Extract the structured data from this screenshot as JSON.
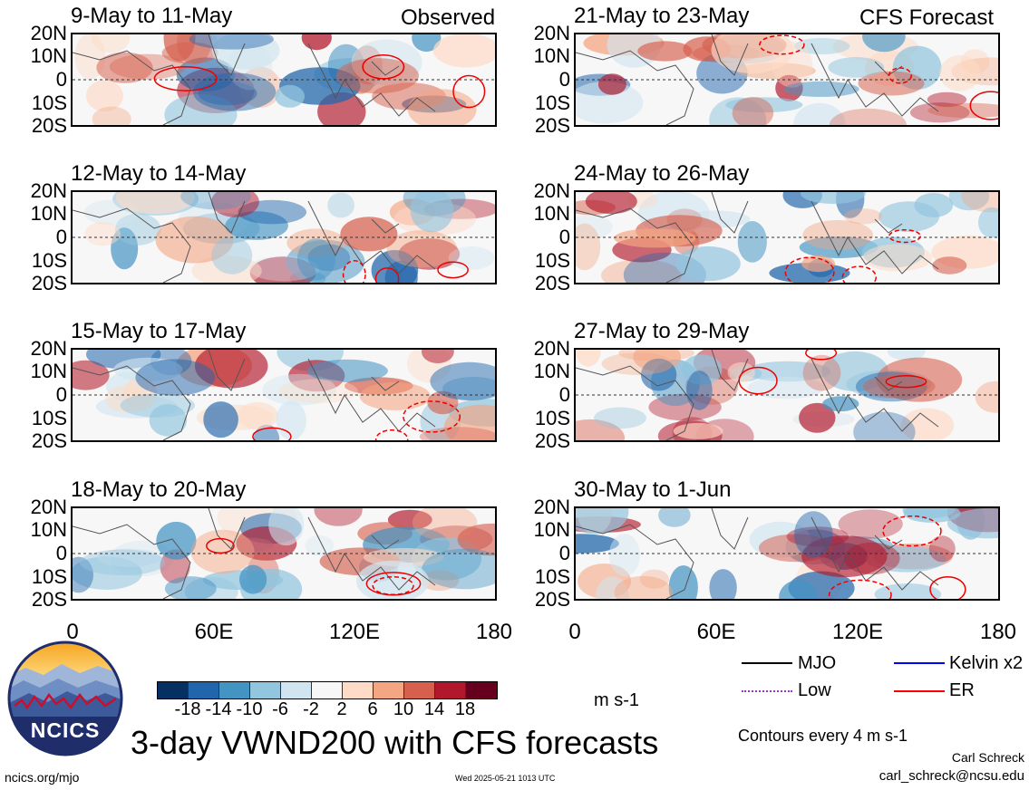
{
  "figure": {
    "title": "3-day VWND200 with CFS forecasts",
    "units": "m s-1",
    "contour_note": "Contours every 4 m s-1",
    "author": "Carl Schreck",
    "email": "carl_schreck@ncsu.edu",
    "site": "ncics.org/mjo",
    "timestamp": "Wed 2025-05-21 1013 UTC",
    "logo_text": "NCICS"
  },
  "columns": {
    "observed_label": "Observed",
    "forecast_label": "CFS Forecast"
  },
  "panels_left": [
    {
      "title": "9-May to 11-May"
    },
    {
      "title": "12-May to 14-May"
    },
    {
      "title": "15-May to 17-May"
    },
    {
      "title": "18-May to 20-May"
    }
  ],
  "panels_right": [
    {
      "title": "21-May to 23-May"
    },
    {
      "title": "24-May to 26-May"
    },
    {
      "title": "27-May to 29-May"
    },
    {
      "title": "30-May to 1-Jun"
    }
  ],
  "axes": {
    "y_ticks": [
      "20N",
      "10N",
      "0",
      "10S",
      "20S"
    ],
    "x_ticks": [
      "0",
      "60E",
      "120E",
      "180"
    ]
  },
  "colorbar": {
    "ticks": [
      "-18",
      "-14",
      "-10",
      "-6",
      "-2",
      "2",
      "6",
      "10",
      "14",
      "18"
    ],
    "colors": [
      "#053061",
      "#2166ac",
      "#4393c3",
      "#92c5de",
      "#d1e5f0",
      "#f7f7f7",
      "#fddbc7",
      "#f4a582",
      "#d6604d",
      "#b2182b",
      "#67001f"
    ]
  },
  "legend": [
    {
      "label": "MJO",
      "color": "#000000"
    },
    {
      "label": "Kelvin x2",
      "color": "#0000ff"
    },
    {
      "label": "Low",
      "color": "#9933cc"
    },
    {
      "label": "ER",
      "color": "#ff0000"
    }
  ],
  "chart_data": {
    "type": "heatmap",
    "title": "3-day VWND200 with CFS forecasts",
    "variable": "200-hPa meridional wind",
    "units": "m s-1",
    "x_axis": {
      "ticks": [
        "0",
        "60E",
        "120E",
        "180"
      ],
      "range": [
        0,
        180
      ]
    },
    "y_axis": {
      "ticks": [
        "20N",
        "10N",
        "0",
        "10S",
        "20S"
      ],
      "range": [
        -20,
        20
      ]
    },
    "color_levels": [
      -18,
      -14,
      -10,
      -6,
      -2,
      2,
      6,
      10,
      14,
      18
    ],
    "contour_interval": 4,
    "panels": [
      {
        "period": "9-May to 11-May",
        "source": "Observed"
      },
      {
        "period": "12-May to 14-May",
        "source": "Observed"
      },
      {
        "period": "15-May to 17-May",
        "source": "Observed"
      },
      {
        "period": "18-May to 20-May",
        "source": "Observed"
      },
      {
        "period": "21-May to 23-May",
        "source": "CFS Forecast"
      },
      {
        "period": "24-May to 26-May",
        "source": "CFS Forecast"
      },
      {
        "period": "27-May to 29-May",
        "source": "CFS Forecast"
      },
      {
        "period": "30-May to 1-Jun",
        "source": "CFS Forecast"
      }
    ],
    "legend": [
      "MJO",
      "Kelvin x2",
      "Low",
      "ER"
    ]
  }
}
